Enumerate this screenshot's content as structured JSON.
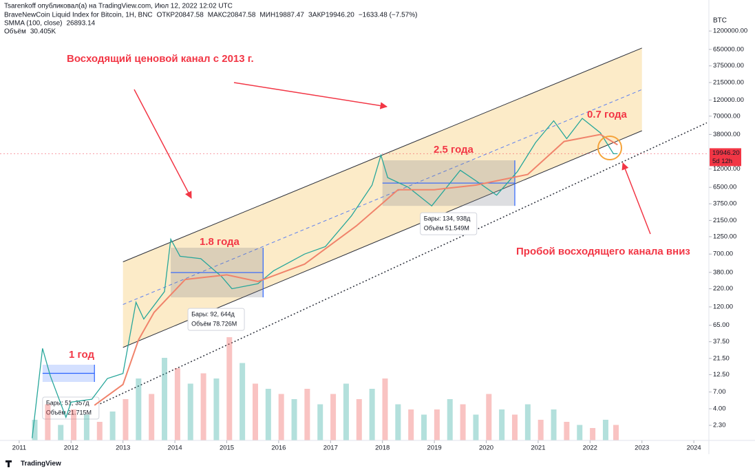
{
  "chart_data": {
    "type": "line",
    "header": {
      "author": "Tsarenkoff опубликовал(а) на TradingView.com, Июл 12, 2022 12:02 UTC",
      "ohlc": [
        {
          "label": "ОТКР",
          "value": "20847.58"
        },
        {
          "label": "МАКС",
          "value": "20847.58"
        },
        {
          "label": "МИН",
          "value": "19887.47"
        },
        {
          "label": "ЗАКР",
          "value": "19946.20"
        }
      ],
      "change": "−1633.48 (−7.57%)",
      "smma_value": "26893.14",
      "volume_label": "Объём",
      "volume_value": "30.405K"
    },
    "y_unit": "BTC",
    "log_y": true,
    "ylim": [
      1.39,
      2040000
    ],
    "yticks": [
      {
        "value": 1200000,
        "label": "1200000.00"
      },
      {
        "value": 650000,
        "label": "650000.00"
      },
      {
        "value": 375000,
        "label": "375000.00"
      },
      {
        "value": 215000,
        "label": "215000.00"
      },
      {
        "value": 120000,
        "label": "120000.00"
      },
      {
        "value": 70000,
        "label": "70000.00"
      },
      {
        "value": 38000,
        "label": "38000.00"
      },
      {
        "value": 12000,
        "label": "12000.00"
      },
      {
        "value": 6500,
        "label": "6500.00"
      },
      {
        "value": 3750,
        "label": "3750.00"
      },
      {
        "value": 2150,
        "label": "2150.00"
      },
      {
        "value": 1250,
        "label": "1250.00"
      },
      {
        "value": 700,
        "label": "700.00"
      },
      {
        "value": 380,
        "label": "380.00"
      },
      {
        "value": 220,
        "label": "220.00"
      },
      {
        "value": 120,
        "label": "120.00"
      },
      {
        "value": 65,
        "label": "65.00"
      },
      {
        "value": 37.5,
        "label": "37.50"
      },
      {
        "value": 21.5,
        "label": "21.50"
      },
      {
        "value": 12.5,
        "label": "12.50"
      },
      {
        "value": 7,
        "label": "7.00"
      },
      {
        "value": 4,
        "label": "4.00"
      },
      {
        "value": 2.3,
        "label": "2.30"
      }
    ],
    "xlim": [
      2010.63,
      2024.29
    ],
    "xticks": [
      2011,
      2012,
      2013,
      2014,
      2015,
      2016,
      2017,
      2018,
      2019,
      2020,
      2021,
      2022,
      2023,
      2024
    ],
    "series": [
      {
        "name": "BraveNewCoin Liquid Index for Bitcoin, 1H, BNC",
        "color": "#26a69a",
        "x": [
          2011.25,
          2011.45,
          2011.6,
          2011.9,
          2012.0,
          2012.4,
          2012.7,
          2013.0,
          2013.25,
          2013.4,
          2013.8,
          2013.92,
          2014.1,
          2014.5,
          2014.9,
          2015.1,
          2015.6,
          2015.9,
          2016.5,
          2016.9,
          2017.4,
          2017.8,
          2017.97,
          2018.1,
          2018.5,
          2018.95,
          2019.5,
          2019.9,
          2020.2,
          2020.6,
          2020.95,
          2021.3,
          2021.55,
          2021.85,
          2022.2,
          2022.45,
          2022.53
        ],
        "values": [
          1.5,
          30,
          12,
          3,
          5,
          5.5,
          11,
          13,
          140,
          80,
          200,
          1150,
          650,
          600,
          330,
          220,
          260,
          400,
          700,
          900,
          2500,
          7000,
          19000,
          9000,
          6500,
          3500,
          11500,
          7200,
          5000,
          11000,
          29000,
          60000,
          33000,
          65000,
          40000,
          20000,
          19946.2
        ]
      },
      {
        "name": "SMMA (100, close)",
        "color": "#f0836b",
        "x": [
          2012.45,
          2013.0,
          2013.3,
          2013.6,
          2014.2,
          2015.0,
          2015.6,
          2016.5,
          2017.5,
          2018.3,
          2019.0,
          2019.8,
          2020.8,
          2021.5,
          2022.2,
          2022.53
        ],
        "values": [
          4.5,
          9,
          40,
          100,
          300,
          350,
          280,
          500,
          1800,
          6000,
          6000,
          7000,
          10000,
          30000,
          38000,
          26893.14
        ]
      }
    ],
    "volume": {
      "color": "#26a69a",
      "x": [
        2011.3,
        2011.55,
        2011.8,
        2012.05,
        2012.3,
        2012.55,
        2012.8,
        2013.05,
        2013.3,
        2013.55,
        2013.8,
        2014.05,
        2014.3,
        2014.55,
        2014.8,
        2015.05,
        2015.3,
        2015.55,
        2015.8,
        2016.05,
        2016.3,
        2016.55,
        2016.8,
        2017.05,
        2017.3,
        2017.55,
        2017.8,
        2018.05,
        2018.3,
        2018.55,
        2018.8,
        2019.05,
        2019.3,
        2019.55,
        2019.8,
        2020.05,
        2020.3,
        2020.55,
        2020.8,
        2021.05,
        2021.3,
        2021.55,
        2021.8,
        2022.05,
        2022.3,
        2022.5
      ],
      "values": [
        20,
        35,
        15,
        30,
        25,
        18,
        28,
        40,
        60,
        45,
        80,
        70,
        55,
        65,
        60,
        100,
        75,
        55,
        50,
        45,
        40,
        50,
        35,
        45,
        55,
        40,
        50,
        60,
        35,
        30,
        25,
        30,
        40,
        35,
        25,
        45,
        30,
        25,
        35,
        20,
        30,
        18,
        15,
        12,
        20,
        15
      ]
    },
    "channel": {
      "upper": {
        "x": [
          2013.0,
          2023.0
        ],
        "values": [
          540,
          680000
        ]
      },
      "middle": {
        "x": [
          2013.0,
          2023.0
        ],
        "values": [
          130,
          170000
        ]
      },
      "lower": {
        "x": [
          2013.0,
          2023.0
        ],
        "values": [
          31,
          43000
        ]
      },
      "support": {
        "x": [
          2012.5,
          2024.25
        ],
        "values": [
          4.5,
          56000
        ]
      }
    },
    "measures": [
      {
        "x": [
          2011.45,
          2012.45
        ],
        "y": [
          9.8,
          17.4
        ],
        "bars": "Бары: 51, 357д",
        "volume": "Объём 21.715M"
      },
      {
        "x": [
          2013.92,
          2015.7
        ],
        "y": [
          165,
          865
        ],
        "bars": "Бары: 92, 644д",
        "volume": "Объём 78.726M"
      },
      {
        "x": [
          2018.0,
          2020.55
        ],
        "y": [
          3500,
          16000
        ],
        "bars": "Бары: 134, 938д",
        "volume": "Объём 51.549M"
      }
    ],
    "annotations": [
      "Восходящий ценовой канал с 2013 г.",
      "1 год",
      "1.8 года",
      "2.5 года",
      "0.7 года",
      "Пробой восходящего канала вниз"
    ],
    "last_price": {
      "value": 19946.2,
      "label": "19946.20",
      "countdown": "5d 12h"
    },
    "footer": "TradingView"
  }
}
